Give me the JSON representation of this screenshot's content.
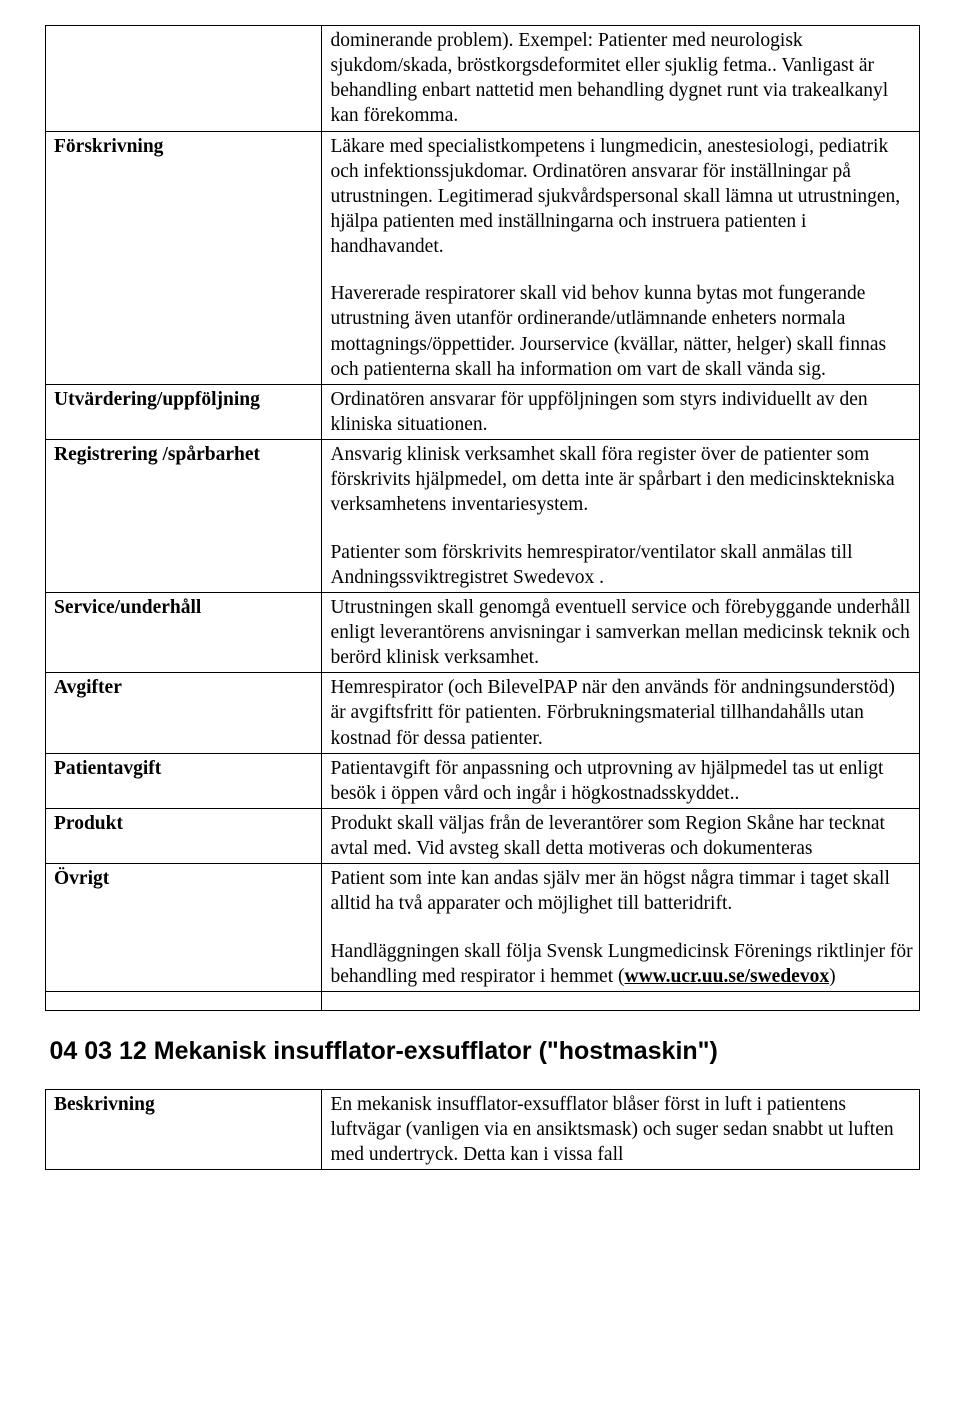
{
  "table": {
    "row0": {
      "label": "",
      "p1": "dominerande problem). Exempel: Patienter med neurologisk sjukdom/skada, bröstkorgsdeformitet eller sjuklig fetma.. Vanligast är behandling enbart nattetid men behandling dygnet runt via trakealkanyl kan förekomma."
    },
    "row1": {
      "label": "Förskrivning",
      "p1": "Läkare med specialistkompetens i lungmedicin, anestesiologi, pediatrik och infektionssjukdomar. Ordinatören ansvarar för inställningar på utrustningen. Legitimerad sjukvårdspersonal skall lämna ut utrustningen, hjälpa patienten med inställningarna och instruera patienten i handhavandet.",
      "p2": "Havererade respiratorer skall vid behov kunna bytas mot fungerande utrustning även utanför ordinerande/utlämnande enheters normala mottagnings/öppettider. Jourservice (kvällar, nätter, helger) skall finnas och patienterna skall ha information om vart de skall vända sig."
    },
    "row2": {
      "label": "Utvärdering/uppföljning",
      "p1": "Ordinatören ansvarar för uppföljningen som styrs individuellt av den kliniska situationen."
    },
    "row3": {
      "label": "Registrering /spårbarhet",
      "p1": "Ansvarig klinisk verksamhet skall föra register över de patienter som förskrivits hjälpmedel, om detta inte är spårbart i den medicinsktekniska verksamhetens inventariesystem.",
      "p2": "Patienter som förskrivits hemrespirator/ventilator skall anmälas till Andningssviktregistret Swedevox ."
    },
    "row4": {
      "label": "Service/underhåll",
      "p1": "Utrustningen skall genomgå eventuell service och förebyggande underhåll enligt leverantörens anvisningar i samverkan mellan medicinsk teknik och berörd klinisk verksamhet."
    },
    "row5": {
      "label": "Avgifter",
      "p1": "Hemrespirator (och BilevelPAP när den används för andningsunderstöd) är avgiftsfritt för patienten. Förbrukningsmaterial tillhandahålls utan kostnad för dessa patienter."
    },
    "row6": {
      "label": "Patientavgift",
      "p1": "Patientavgift för anpassning och utprovning av hjälpmedel tas ut enligt besök i öppen vård och ingår i högkostnadsskyddet.."
    },
    "row7": {
      "label": "Produkt",
      "p1": "Produkt skall väljas från de leverantörer som Region Skåne har tecknat avtal med. Vid avsteg skall detta motiveras och dokumenteras"
    },
    "row8": {
      "label": "Övrigt",
      "p1": "Patient som inte kan andas själv mer än högst några timmar i taget skall alltid ha två apparater och möjlighet till batteridrift.",
      "p2a": "Handläggningen skall följa Svensk Lungmedicinsk Förenings riktlinjer för behandling med respirator i hemmet (",
      "p2link": "www.ucr.uu.se/swedevox",
      "p2b": ")"
    },
    "heading": "04 03 12 Mekanisk insufflator-exsufflator (\"hostmaskin\")",
    "row9": {
      "label": "Beskrivning",
      "p1": "En mekanisk insufflator-exsufflator blåser först in luft i patientens luftvägar (vanligen via en ansiktsmask) och suger sedan snabbt ut luften med undertryck. Detta kan i vissa fall"
    }
  }
}
